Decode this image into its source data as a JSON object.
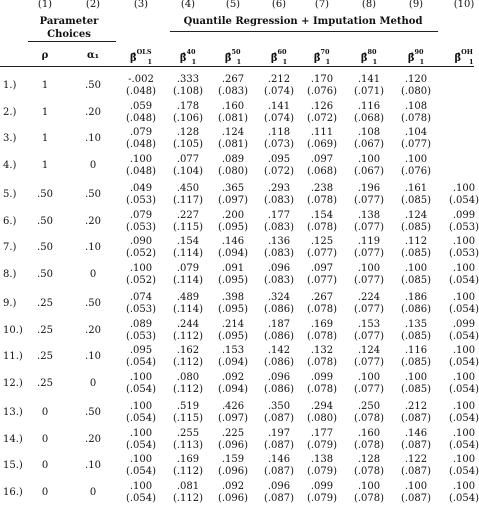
{
  "col_numbers": [
    "(1)",
    "(2)",
    "(3)",
    "(4)",
    "(5)",
    "(6)",
    "(7)",
    "(8)",
    "(9)",
    "(10)"
  ],
  "group_headers": {
    "parameter": [
      "Parameter",
      "Choices"
    ],
    "quantile": "Quantile Regression + Imputation Method"
  },
  "param_symbols": [
    "ρ",
    "α₁"
  ],
  "estimator_headers": [
    {
      "base": "β̂",
      "sup": "OLS",
      "sub": "1"
    },
    {
      "base": "β̂",
      "sup": "40",
      "sub": "1"
    },
    {
      "base": "β̂",
      "sup": "50",
      "sub": "1"
    },
    {
      "base": "β̂",
      "sup": "60",
      "sub": "1"
    },
    {
      "base": "β̂",
      "sup": "70",
      "sub": "1"
    },
    {
      "base": "β̂",
      "sup": "80",
      "sub": "1"
    },
    {
      "base": "β̂",
      "sup": "90",
      "sub": "1"
    },
    {
      "base": "β̂",
      "sup": "OH",
      "sub": "1"
    }
  ],
  "rows": [
    {
      "id": "1.)",
      "rho": "1",
      "alpha": ".50",
      "est": [
        ".002",
        ".333",
        ".267",
        ".212",
        ".170",
        ".141",
        ".120",
        ""
      ],
      "se": [
        "(.048)",
        "(.108)",
        "(.083)",
        "(.074)",
        "(.076)",
        "(.071)",
        "(.080)",
        ""
      ],
      "first_neg": true
    },
    {
      "id": "2.)",
      "rho": "1",
      "alpha": ".20",
      "est": [
        ".059",
        ".178",
        ".160",
        ".141",
        ".126",
        ".116",
        ".108",
        ""
      ],
      "se": [
        "(.048)",
        "(.106)",
        "(.081)",
        "(.074)",
        "(.072)",
        "(.068)",
        "(.078)",
        ""
      ]
    },
    {
      "id": "3.)",
      "rho": "1",
      "alpha": ".10",
      "est": [
        ".079",
        ".128",
        ".124",
        ".118",
        ".111",
        ".108",
        ".104",
        ""
      ],
      "se": [
        "(.048)",
        "(.105)",
        "(.081)",
        "(.073)",
        "(.069)",
        "(.067)",
        "(.077)",
        ""
      ]
    },
    {
      "id": "4.)",
      "rho": "1",
      "alpha": "0",
      "est": [
        ".100",
        ".077",
        ".089",
        ".095",
        ".097",
        ".100",
        ".100",
        ""
      ],
      "se": [
        "(.048)",
        "(.104)",
        "(.080)",
        "(.072)",
        "(.068)",
        "(.067)",
        "(.076)",
        ""
      ]
    },
    {
      "id": "5.)",
      "rho": ".50",
      "alpha": ".50",
      "est": [
        ".049",
        ".450",
        ".365",
        ".293",
        ".238",
        ".196",
        ".161",
        ".100"
      ],
      "se": [
        "(.053)",
        "(.117)",
        "(.097)",
        "(.083)",
        "(.078)",
        "(.077)",
        "(.085)",
        "(.054)"
      ]
    },
    {
      "id": "6.)",
      "rho": ".50",
      "alpha": ".20",
      "est": [
        ".079",
        ".227",
        ".200",
        ".177",
        ".154",
        ".138",
        ".124",
        ".099"
      ],
      "se": [
        "(.053)",
        "(.115)",
        "(.095)",
        "(.083)",
        "(.078)",
        "(.077)",
        "(.085)",
        "(.053)"
      ]
    },
    {
      "id": "7.)",
      "rho": ".50",
      "alpha": ".10",
      "est": [
        ".090",
        ".154",
        ".146",
        ".136",
        ".125",
        ".119",
        ".112",
        ".100"
      ],
      "se": [
        "(.052)",
        "(.114)",
        "(.094)",
        "(.083)",
        "(.077)",
        "(.077)",
        "(.085)",
        "(.053)"
      ]
    },
    {
      "id": "8.)",
      "rho": ".50",
      "alpha": "0",
      "est": [
        ".100",
        ".079",
        ".091",
        ".096",
        ".097",
        ".100",
        ".100",
        ".100"
      ],
      "se": [
        "(.052)",
        "(.114)",
        "(.095)",
        "(.083)",
        "(.077)",
        "(.077)",
        "(.085)",
        "(.054)"
      ]
    },
    {
      "id": "9.)",
      "rho": ".25",
      "alpha": ".50",
      "est": [
        ".074",
        ".489",
        ".398",
        ".324",
        ".267",
        ".224",
        ".186",
        ".100"
      ],
      "se": [
        "(.053)",
        "(.114)",
        "(.095)",
        "(.086)",
        "(.078)",
        "(.077)",
        "(.086)",
        "(.054)"
      ]
    },
    {
      "id": "10.)",
      "rho": ".25",
      "alpha": ".20",
      "est": [
        ".089",
        ".244",
        ".214",
        ".187",
        ".169",
        ".153",
        ".135",
        ".099"
      ],
      "se": [
        "(.053)",
        "(.112)",
        "(.095)",
        "(.086)",
        "(.078)",
        "(.077)",
        "(.085)",
        "(.054)"
      ]
    },
    {
      "id": "11.)",
      "rho": ".25",
      "alpha": ".10",
      "est": [
        ".095",
        ".162",
        ".153",
        ".142",
        ".132",
        ".124",
        ".116",
        ".100"
      ],
      "se": [
        "(.054)",
        "(.112)",
        "(.094)",
        "(.086)",
        "(.078)",
        "(.077)",
        "(.085)",
        "(.054)"
      ]
    },
    {
      "id": "12.)",
      "rho": ".25",
      "alpha": "0",
      "est": [
        ".100",
        ".080",
        ".092",
        ".096",
        ".099",
        ".100",
        ".100",
        ".100"
      ],
      "se": [
        "(.054)",
        "(.112)",
        "(.094)",
        "(.086)",
        "(.078)",
        "(.077)",
        "(.085)",
        "(.054)"
      ]
    },
    {
      "id": "13.)",
      "rho": "0",
      "alpha": ".50",
      "est": [
        ".100",
        ".519",
        ".426",
        ".350",
        ".294",
        ".250",
        ".212",
        ".100"
      ],
      "se": [
        "(.054)",
        "(.115)",
        "(.097)",
        "(.087)",
        "(.080)",
        "(.078)",
        "(.087)",
        "(.054)"
      ]
    },
    {
      "id": "14.)",
      "rho": "0",
      "alpha": ".20",
      "est": [
        ".100",
        ".255",
        ".225",
        ".197",
        ".177",
        ".160",
        ".146",
        ".100"
      ],
      "se": [
        "(.054)",
        "(.113)",
        "(.096)",
        "(.087)",
        "(.079)",
        "(.078)",
        "(.087)",
        "(.054)"
      ]
    },
    {
      "id": "15.)",
      "rho": "0",
      "alpha": ".10",
      "est": [
        ".100",
        ".169",
        ".159",
        ".146",
        ".138",
        ".128",
        ".122",
        ".100"
      ],
      "se": [
        "(.054)",
        "(.112)",
        "(.096)",
        "(.087)",
        "(.079)",
        "(.078)",
        "(.087)",
        "(.054)"
      ]
    },
    {
      "id": "16.)",
      "rho": "0",
      "alpha": "0",
      "est": [
        ".100",
        ".081",
        ".092",
        ".096",
        ".099",
        ".100",
        ".100",
        ".100"
      ],
      "se": [
        "(.054)",
        "(.112)",
        "(.096)",
        "(.087)",
        "(.079)",
        "(.078)",
        "(.087)",
        "(.054)"
      ]
    }
  ],
  "neg_sign": "-"
}
